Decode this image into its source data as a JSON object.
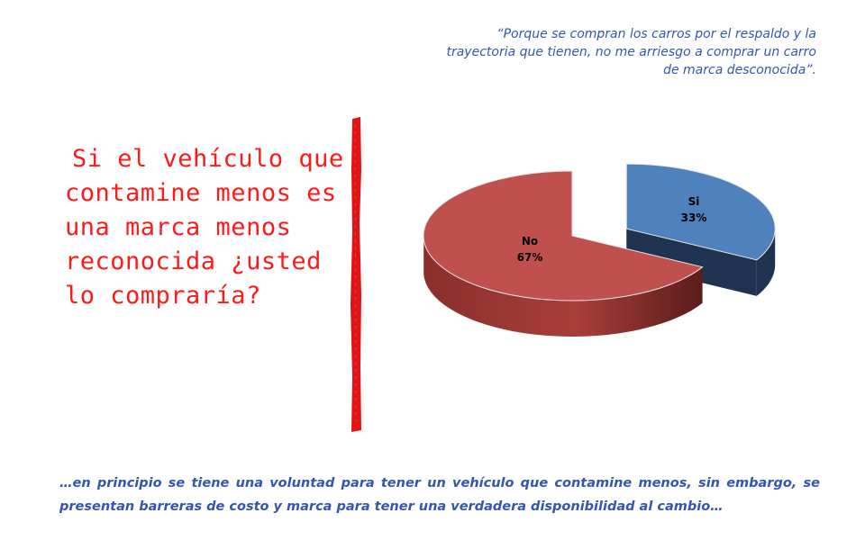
{
  "quote": {
    "lines": [
      "“Porque se compran los carros por el respaldo y la",
      "trayectoria que tienen, no me arriesgo a comprar un carro",
      "de marca desconocida”."
    ]
  },
  "question": {
    "text": "Si el vehículo que contamine menos es una marca menos reconocida ¿usted lo compraría?"
  },
  "conclusion": {
    "text": "…en principio se tiene una voluntad para tener un vehículo que contamine menos, sin embargo, se presentan barreras de costo y marca para tener una verdadera disponibilidad al cambio…"
  },
  "chart_data": {
    "type": "pie",
    "title": "",
    "slices": [
      {
        "label": "Si",
        "value": 33,
        "value_label": "33%",
        "color": "#4f81bd",
        "side_color": "#1f3350",
        "exploded": true
      },
      {
        "label": "No",
        "value": 67,
        "value_label": "67%",
        "color": "#c0504d",
        "side_color": "#6e2422",
        "exploded": false
      }
    ],
    "style": "3d",
    "legend": "none"
  },
  "colors": {
    "quote_text": "#3355b5",
    "question_text": "#ff1a1a",
    "divider": "#e01414"
  }
}
